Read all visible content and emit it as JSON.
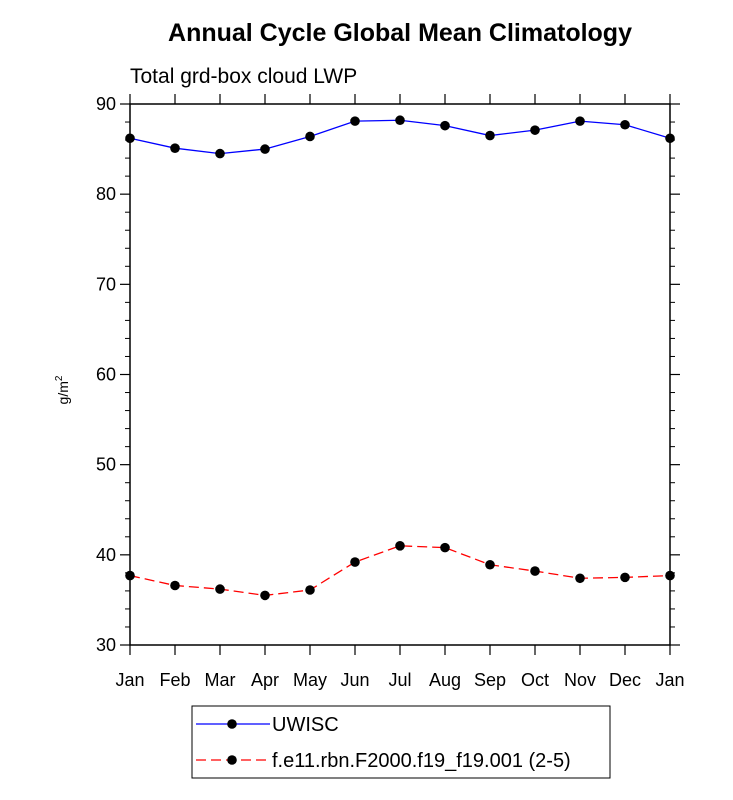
{
  "chart_data": {
    "type": "line",
    "title": "Annual Cycle Global Mean Climatology",
    "subtitle": "Total grd-box cloud LWP",
    "ylabel_base": "g/m",
    "ylabel_sup": "2",
    "xlabel": "",
    "categories": [
      "Jan",
      "Feb",
      "Mar",
      "Apr",
      "May",
      "Jun",
      "Jul",
      "Aug",
      "Sep",
      "Oct",
      "Nov",
      "Dec",
      "Jan"
    ],
    "ylim": [
      30,
      90
    ],
    "yticks": [
      30,
      40,
      50,
      60,
      70,
      80,
      90
    ],
    "y_minor_step": 2,
    "grid": false,
    "legend_position": "bottom-center",
    "series": [
      {
        "name": "UWISC",
        "color": "#0000ff",
        "line_style": "solid",
        "marker_color": "#000000",
        "values": [
          86.2,
          85.1,
          84.5,
          85.0,
          86.4,
          88.1,
          88.2,
          87.6,
          86.5,
          87.1,
          88.1,
          87.7,
          86.2
        ]
      },
      {
        "name": "f.e11.rbn.F2000.f19_f19.001 (2-5)",
        "color": "#ff0000",
        "line_style": "dashed",
        "marker_color": "#000000",
        "values": [
          37.7,
          36.6,
          36.2,
          35.5,
          36.1,
          39.2,
          41.0,
          40.8,
          38.9,
          38.2,
          37.4,
          37.5,
          37.7
        ]
      }
    ]
  }
}
